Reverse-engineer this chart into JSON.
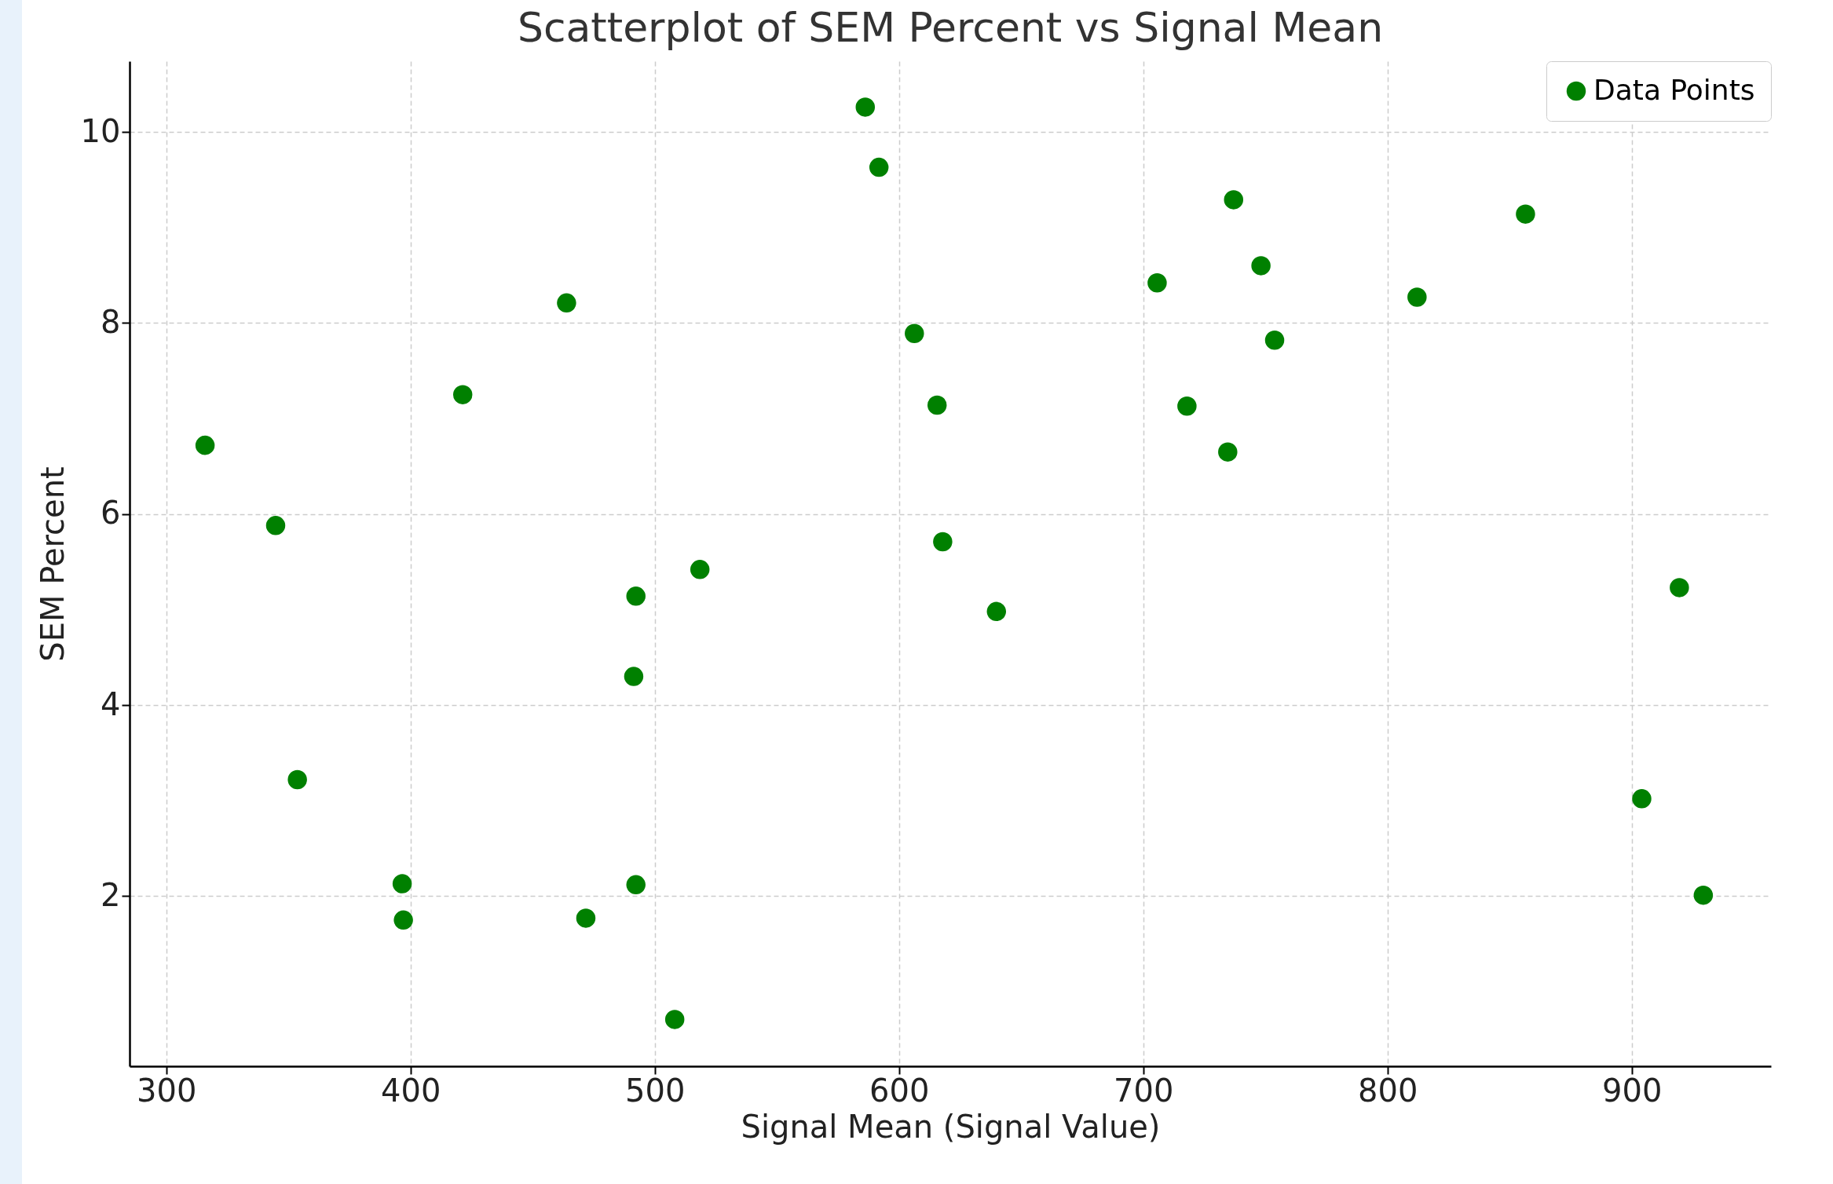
{
  "chart_data": {
    "type": "scatter",
    "title": "Scatterplot of SEM Percent vs Signal Mean",
    "xlabel": "Signal Mean (Signal Value)",
    "ylabel": "SEM Percent",
    "x": [
      315.9,
      344.8,
      353.7,
      396.6,
      397.1,
      421.4,
      463.9,
      471.8,
      491.4,
      492.3,
      492.3,
      508.2,
      518.5,
      586.2,
      591.8,
      606.3,
      615.6,
      617.9,
      639.9,
      705.7,
      717.9,
      734.6,
      737.0,
      748.2,
      753.8,
      812.1,
      856.5,
      904.1,
      919.5,
      929.3
    ],
    "series": [
      {
        "name": "Data Points",
        "color": "#008000",
        "values": [
          6.72,
          5.88,
          3.22,
          2.13,
          1.75,
          7.25,
          8.21,
          1.77,
          4.3,
          5.14,
          2.12,
          0.71,
          5.42,
          10.26,
          9.63,
          7.89,
          7.14,
          5.71,
          4.98,
          8.42,
          7.13,
          6.65,
          9.29,
          8.6,
          7.82,
          8.27,
          9.14,
          3.02,
          5.23,
          2.01
        ]
      }
    ],
    "xlim": [
      285,
      957
    ],
    "ylim": [
      0.22,
      10.74
    ],
    "xticks": [
      300,
      400,
      500,
      600,
      700,
      800,
      900
    ],
    "yticks": [
      2,
      4,
      6,
      8,
      10
    ],
    "grid": true,
    "legend": "top right",
    "marker": "circle"
  }
}
